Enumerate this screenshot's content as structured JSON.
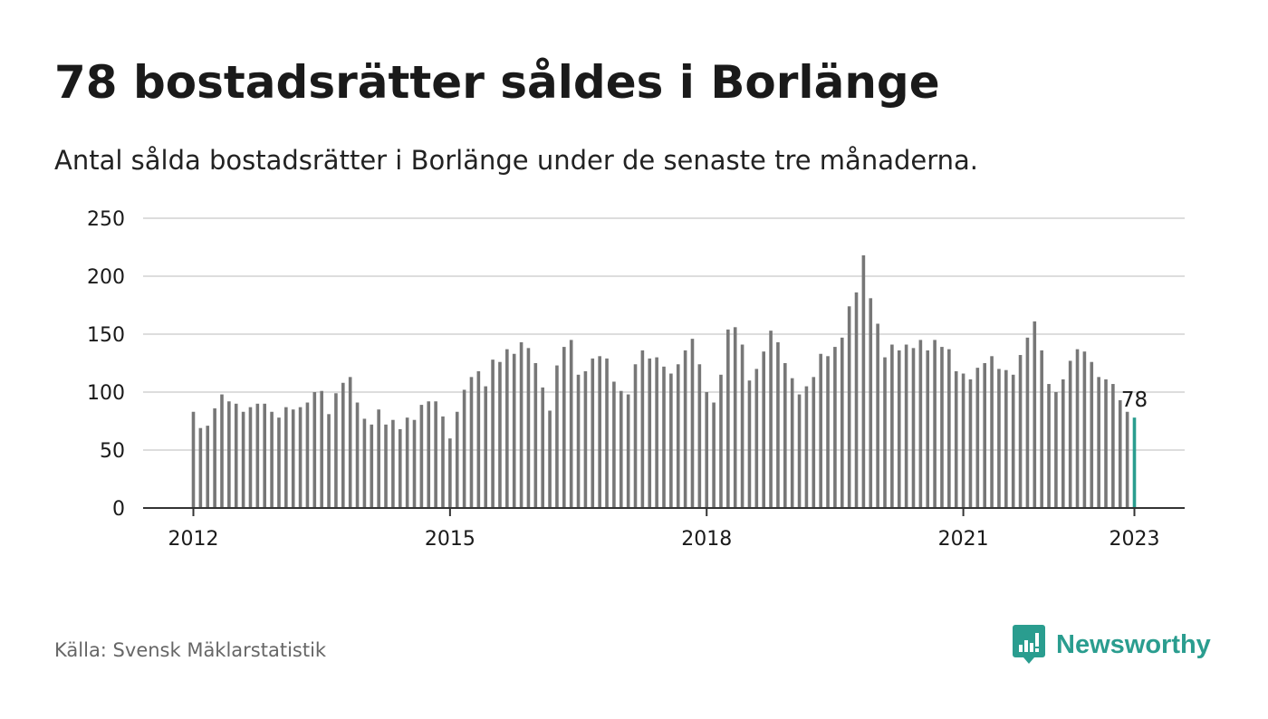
{
  "header": {
    "title": "78 bostadsrätter såldes i Borlänge",
    "subtitle": "Antal sålda bostadsrätter i Borlänge under de senaste tre månaderna."
  },
  "footer": {
    "source": "Källa: Svensk Mäklarstatistik",
    "brand": "Newsworthy"
  },
  "colors": {
    "bar": "#777777",
    "highlight": "#2a9d8f",
    "grid": "#dddddd",
    "axis": "#333333"
  },
  "chart_data": {
    "type": "bar",
    "title": "78 bostadsrätter såldes i Borlänge",
    "subtitle": "Antal sålda bostadsrätter i Borlänge under de senaste tre månaderna.",
    "xlabel": "",
    "ylabel": "",
    "ylim": [
      0,
      250
    ],
    "yticks": [
      0,
      50,
      100,
      150,
      200,
      250
    ],
    "xticks": [
      {
        "label": "2012",
        "index": 0
      },
      {
        "label": "2015",
        "index": 36
      },
      {
        "label": "2018",
        "index": 72
      },
      {
        "label": "2021",
        "index": 108
      },
      {
        "label": "2023",
        "index": 132
      }
    ],
    "grid": true,
    "legend": "none",
    "highlight_label": "78",
    "values": [
      83,
      69,
      71,
      86,
      98,
      92,
      90,
      83,
      87,
      90,
      90,
      83,
      78,
      87,
      85,
      87,
      91,
      100,
      101,
      81,
      99,
      108,
      113,
      91,
      77,
      72,
      85,
      72,
      76,
      68,
      78,
      76,
      89,
      92,
      92,
      79,
      60,
      83,
      102,
      113,
      118,
      105,
      128,
      126,
      137,
      133,
      143,
      138,
      125,
      104,
      84,
      123,
      139,
      145,
      115,
      118,
      129,
      131,
      129,
      109,
      101,
      98,
      124,
      136,
      129,
      130,
      122,
      116,
      124,
      136,
      146,
      124,
      100,
      91,
      115,
      154,
      156,
      141,
      110,
      120,
      135,
      153,
      143,
      125,
      112,
      98,
      105,
      113,
      133,
      131,
      139,
      147,
      174,
      186,
      218,
      181,
      159,
      130,
      141,
      136,
      141,
      138,
      145,
      136,
      145,
      139,
      137,
      118,
      116,
      111,
      121,
      125,
      131,
      120,
      119,
      115,
      132,
      147,
      161,
      136,
      107,
      100,
      111,
      127,
      137,
      135,
      126,
      113,
      111,
      107,
      93,
      83,
      78
    ]
  }
}
